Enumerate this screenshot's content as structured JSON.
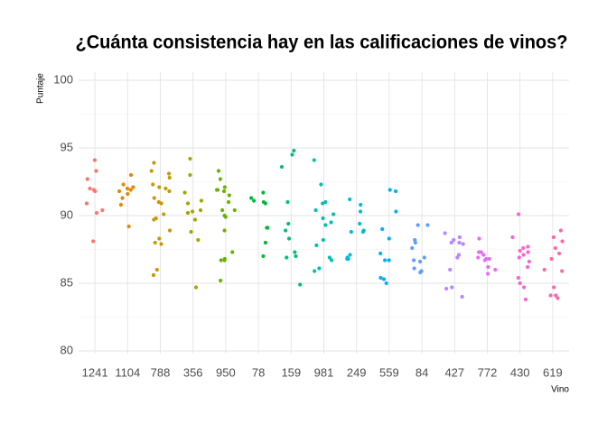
{
  "chart_data": {
    "type": "strip",
    "title": "¿Cuánta consistencia hay en las calificaciones de vinos?",
    "x_label": "Vino",
    "y_label": "Puntaje",
    "categories": [
      "1241",
      "1104",
      "788",
      "356",
      "950",
      "78",
      "159",
      "981",
      "249",
      "559",
      "84",
      "427",
      "772",
      "430",
      "619"
    ],
    "colors": [
      "#F8766D",
      "#E58700",
      "#C99800",
      "#A3A500",
      "#6BB100",
      "#00BA38",
      "#00BF7D",
      "#00C0AF",
      "#00BCD8",
      "#00B0F6",
      "#619CFF",
      "#B983FF",
      "#E76BF3",
      "#FD61D1",
      "#FF67A4"
    ],
    "values": [
      [
        94.1,
        93.3,
        92.7,
        92.0,
        91.9,
        91.8,
        90.9,
        90.4,
        90.2,
        88.1
      ],
      [
        92.3,
        92.1,
        91.9,
        91.8,
        91.6,
        91.3,
        93.0,
        90.8,
        89.2,
        92.0
      ],
      [
        93.9,
        93.3,
        93.1,
        92.8,
        92.3,
        92.1,
        91.8,
        91.3,
        91.0,
        90.9,
        90.1,
        89.8,
        89.7,
        88.9,
        88.3,
        88.0,
        87.9,
        86.0,
        85.6,
        92.0
      ],
      [
        94.2,
        93.0,
        91.7,
        91.1,
        90.9,
        90.4,
        90.3,
        90.2,
        89.7,
        88.8,
        88.2,
        84.7
      ],
      [
        93.3,
        92.7,
        92.1,
        91.9,
        91.9,
        91.8,
        91.5,
        91.0,
        90.4,
        90.4,
        90.0,
        89.9,
        88.9,
        87.3,
        86.8,
        86.7,
        86.7,
        85.2
      ],
      [
        91.7,
        91.3,
        91.1,
        91.0,
        90.9,
        89.1,
        89.1,
        88.0,
        87.0
      ],
      [
        94.8,
        94.5,
        93.6,
        91.0,
        89.4,
        88.9,
        88.3,
        87.3,
        87.0,
        86.9,
        84.9
      ],
      [
        94.1,
        92.3,
        91.0,
        90.9,
        90.4,
        90.1,
        89.8,
        89.5,
        89.3,
        88.2,
        87.8,
        86.9,
        86.7,
        86.1,
        85.9
      ],
      [
        91.2,
        90.8,
        90.3,
        89.4,
        88.9,
        88.8,
        88.8,
        87.1,
        86.9,
        86.8,
        86.8
      ],
      [
        91.9,
        91.8,
        90.3,
        89.0,
        88.3,
        87.2,
        86.7,
        86.7,
        85.4,
        85.0,
        85.3
      ],
      [
        89.3,
        89.3,
        88.2,
        88.0,
        87.6,
        86.9,
        86.7,
        86.6,
        86.1,
        85.9,
        85.8
      ],
      [
        88.7,
        88.4,
        88.2,
        88.0,
        88.0,
        87.9,
        87.1,
        86.9,
        86.0,
        84.7,
        84.6,
        84.0
      ],
      [
        88.3,
        87.3,
        87.3,
        87.1,
        86.9,
        86.8,
        86.8,
        86.7,
        86.2,
        86.0,
        85.7
      ],
      [
        90.1,
        88.4,
        87.7,
        87.6,
        87.4,
        87.3,
        87.1,
        86.9,
        86.6,
        86.2,
        85.4,
        85.0,
        84.7,
        83.8
      ],
      [
        88.9,
        88.4,
        88.1,
        87.6,
        87.2,
        86.8,
        86.0,
        85.9,
        84.7,
        84.1,
        84.1,
        83.9
      ]
    ],
    "ylim": [
      79.8,
      100.6
    ],
    "yticks": [
      80,
      85,
      90,
      95,
      100
    ],
    "grid": true
  }
}
